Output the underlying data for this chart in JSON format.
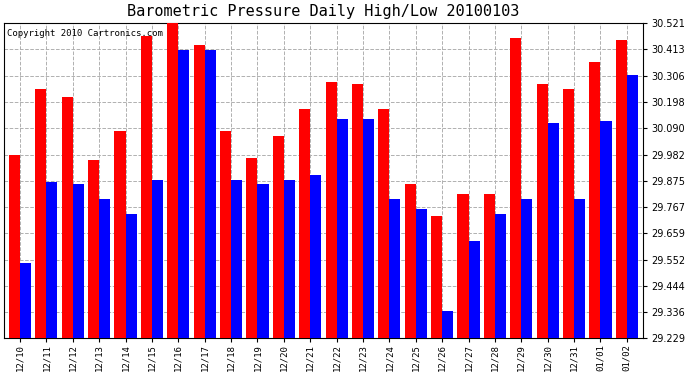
{
  "title": "Barometric Pressure Daily High/Low 20100103",
  "copyright": "Copyright 2010 Cartronics.com",
  "categories": [
    "12/10",
    "12/11",
    "12/12",
    "12/13",
    "12/14",
    "12/15",
    "12/16",
    "12/17",
    "12/18",
    "12/19",
    "12/20",
    "12/21",
    "12/22",
    "12/23",
    "12/24",
    "12/25",
    "12/26",
    "12/27",
    "12/28",
    "12/29",
    "12/30",
    "12/31",
    "01/01",
    "01/02"
  ],
  "highs": [
    29.98,
    30.25,
    30.22,
    29.96,
    30.08,
    30.47,
    30.52,
    30.43,
    30.08,
    29.97,
    30.06,
    30.17,
    30.28,
    30.27,
    30.17,
    29.86,
    29.73,
    29.82,
    29.82,
    30.46,
    30.27,
    30.25,
    30.36,
    30.45
  ],
  "lows": [
    29.54,
    29.87,
    29.86,
    29.8,
    29.74,
    29.88,
    30.41,
    30.41,
    29.88,
    29.86,
    29.88,
    29.9,
    30.13,
    30.13,
    29.8,
    29.76,
    29.34,
    29.63,
    29.74,
    29.8,
    30.11,
    29.8,
    30.12,
    30.31
  ],
  "high_color": "#ff0000",
  "low_color": "#0000ff",
  "bg_color": "#ffffff",
  "grid_color": "#b0b0b0",
  "ylim_min": 29.229,
  "ylim_max": 30.521,
  "yticks": [
    29.229,
    29.336,
    29.444,
    29.552,
    29.659,
    29.767,
    29.875,
    29.982,
    30.09,
    30.198,
    30.306,
    30.413,
    30.521
  ],
  "bar_width": 0.42,
  "title_fontsize": 11,
  "copyright_fontsize": 6.5,
  "tick_fontsize": 6.5,
  "ytick_fontsize": 7
}
